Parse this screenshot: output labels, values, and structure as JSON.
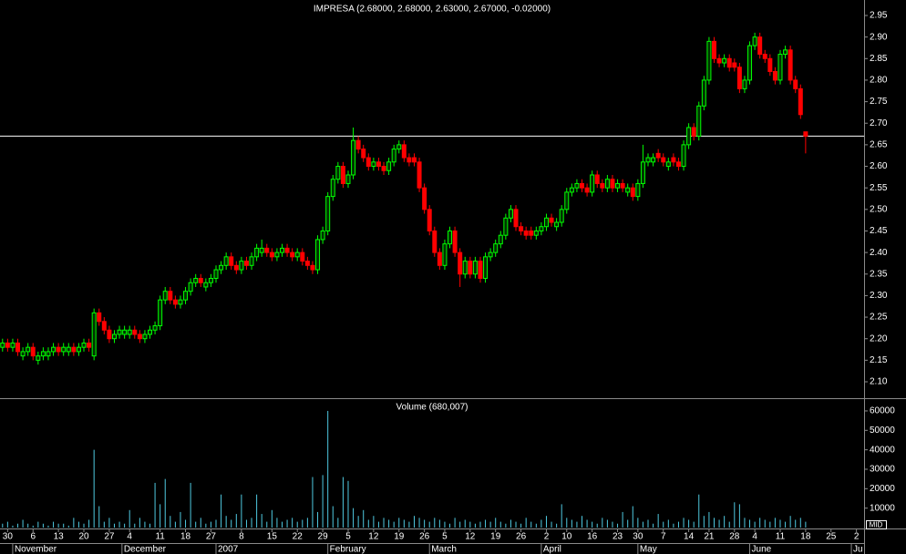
{
  "chart_data": {
    "type": "candlestick",
    "title": "IMPRESA (2.68000, 2.68000, 2.63000, 2.67000, -0.02000)",
    "up_color": "#00ff00",
    "down_color": "#ff0000",
    "open": [
      2.18,
      2.19,
      2.18,
      2.19,
      2.16,
      2.17,
      2.18,
      2.15,
      2.16,
      2.16,
      2.17,
      2.18,
      2.17,
      2.17,
      2.18,
      2.17,
      2.18,
      2.19,
      2.16,
      2.26,
      2.24,
      2.22,
      2.2,
      2.21,
      2.21,
      2.21,
      2.22,
      2.21,
      2.2,
      2.21,
      2.22,
      2.23,
      2.29,
      2.31,
      2.29,
      2.28,
      2.29,
      2.31,
      2.33,
      2.34,
      2.32,
      2.33,
      2.34,
      2.36,
      2.37,
      2.39,
      2.37,
      2.36,
      2.38,
      2.37,
      2.39,
      2.4,
      2.41,
      2.4,
      2.39,
      2.4,
      2.41,
      2.4,
      2.39,
      2.4,
      2.38,
      2.37,
      2.36,
      2.43,
      2.45,
      2.53,
      2.57,
      2.6,
      2.56,
      2.58,
      2.66,
      2.64,
      2.62,
      2.6,
      2.61,
      2.6,
      2.59,
      2.61,
      2.64,
      2.65,
      2.62,
      2.62,
      2.61,
      2.55,
      2.5,
      2.45,
      2.4,
      2.37,
      2.42,
      2.45,
      2.4,
      2.35,
      2.38,
      2.35,
      2.38,
      2.34,
      2.39,
      2.4,
      2.42,
      2.44,
      2.48,
      2.5,
      2.46,
      2.45,
      2.45,
      2.44,
      2.45,
      2.46,
      2.48,
      2.46,
      2.47,
      2.5,
      2.54,
      2.55,
      2.56,
      2.55,
      2.54,
      2.58,
      2.56,
      2.55,
      2.57,
      2.55,
      2.56,
      2.54,
      2.55,
      2.53,
      2.56,
      2.61,
      2.61,
      2.63,
      2.62,
      2.6,
      2.62,
      2.61,
      2.6,
      2.65,
      2.69,
      2.67,
      2.74,
      2.8,
      2.89,
      2.85,
      2.84,
      2.85,
      2.84,
      2.83,
      2.78,
      2.8,
      2.88,
      2.9,
      2.86,
      2.85,
      2.82,
      2.8,
      2.86,
      2.87,
      2.8,
      2.78,
      2.68
    ],
    "high": [
      2.2,
      2.2,
      2.2,
      2.2,
      2.18,
      2.19,
      2.19,
      2.17,
      2.18,
      2.18,
      2.19,
      2.19,
      2.19,
      2.19,
      2.19,
      2.19,
      2.2,
      2.2,
      2.27,
      2.27,
      2.25,
      2.23,
      2.22,
      2.23,
      2.23,
      2.23,
      2.23,
      2.22,
      2.22,
      2.23,
      2.24,
      2.3,
      2.32,
      2.32,
      2.3,
      2.3,
      2.32,
      2.34,
      2.35,
      2.35,
      2.34,
      2.35,
      2.37,
      2.38,
      2.4,
      2.4,
      2.38,
      2.39,
      2.39,
      2.4,
      2.42,
      2.43,
      2.42,
      2.41,
      2.41,
      2.42,
      2.42,
      2.41,
      2.41,
      2.41,
      2.39,
      2.38,
      2.44,
      2.46,
      2.54,
      2.58,
      2.61,
      2.61,
      2.59,
      2.69,
      2.67,
      2.65,
      2.63,
      2.62,
      2.62,
      2.61,
      2.62,
      2.65,
      2.66,
      2.66,
      2.63,
      2.63,
      2.62,
      2.56,
      2.51,
      2.46,
      2.41,
      2.43,
      2.46,
      2.46,
      2.41,
      2.39,
      2.39,
      2.39,
      2.39,
      2.4,
      2.41,
      2.43,
      2.45,
      2.49,
      2.51,
      2.51,
      2.47,
      2.46,
      2.46,
      2.46,
      2.47,
      2.49,
      2.49,
      2.48,
      2.51,
      2.55,
      2.56,
      2.57,
      2.57,
      2.56,
      2.59,
      2.59,
      2.57,
      2.58,
      2.58,
      2.57,
      2.57,
      2.56,
      2.56,
      2.57,
      2.65,
      2.63,
      2.63,
      2.64,
      2.63,
      2.62,
      2.63,
      2.62,
      2.66,
      2.7,
      2.7,
      2.75,
      2.81,
      2.9,
      2.9,
      2.86,
      2.86,
      2.86,
      2.85,
      2.84,
      2.81,
      2.89,
      2.91,
      2.91,
      2.87,
      2.86,
      2.83,
      2.87,
      2.88,
      2.88,
      2.81,
      2.79,
      2.68
    ],
    "low": [
      2.17,
      2.17,
      2.17,
      2.16,
      2.15,
      2.16,
      2.15,
      2.14,
      2.15,
      2.15,
      2.16,
      2.16,
      2.16,
      2.16,
      2.16,
      2.16,
      2.17,
      2.17,
      2.15,
      2.23,
      2.21,
      2.19,
      2.19,
      2.2,
      2.2,
      2.2,
      2.2,
      2.19,
      2.19,
      2.2,
      2.21,
      2.22,
      2.28,
      2.28,
      2.27,
      2.27,
      2.28,
      2.3,
      2.32,
      2.32,
      2.31,
      2.32,
      2.33,
      2.35,
      2.36,
      2.36,
      2.35,
      2.35,
      2.36,
      2.36,
      2.38,
      2.39,
      2.39,
      2.38,
      2.38,
      2.39,
      2.39,
      2.38,
      2.38,
      2.37,
      2.36,
      2.35,
      2.35,
      2.42,
      2.44,
      2.52,
      2.56,
      2.55,
      2.55,
      2.57,
      2.63,
      2.61,
      2.59,
      2.59,
      2.59,
      2.58,
      2.58,
      2.6,
      2.63,
      2.61,
      2.6,
      2.6,
      2.54,
      2.49,
      2.44,
      2.39,
      2.36,
      2.36,
      2.41,
      2.39,
      2.32,
      2.34,
      2.34,
      2.34,
      2.33,
      2.33,
      2.38,
      2.39,
      2.41,
      2.43,
      2.47,
      2.45,
      2.44,
      2.43,
      2.43,
      2.43,
      2.44,
      2.45,
      2.46,
      2.45,
      2.46,
      2.49,
      2.53,
      2.54,
      2.54,
      2.53,
      2.53,
      2.55,
      2.54,
      2.54,
      2.54,
      2.54,
      2.54,
      2.53,
      2.52,
      2.52,
      2.55,
      2.6,
      2.6,
      2.61,
      2.6,
      2.59,
      2.6,
      2.59,
      2.59,
      2.64,
      2.66,
      2.66,
      2.73,
      2.79,
      2.84,
      2.83,
      2.83,
      2.82,
      2.82,
      2.77,
      2.77,
      2.79,
      2.87,
      2.85,
      2.84,
      2.81,
      2.79,
      2.79,
      2.85,
      2.79,
      2.77,
      2.71,
      2.63
    ],
    "close": [
      2.19,
      2.18,
      2.19,
      2.17,
      2.17,
      2.18,
      2.16,
      2.16,
      2.17,
      2.17,
      2.18,
      2.17,
      2.18,
      2.18,
      2.17,
      2.18,
      2.19,
      2.18,
      2.26,
      2.24,
      2.22,
      2.2,
      2.21,
      2.22,
      2.22,
      2.22,
      2.21,
      2.2,
      2.21,
      2.22,
      2.23,
      2.29,
      2.31,
      2.29,
      2.28,
      2.29,
      2.31,
      2.33,
      2.34,
      2.33,
      2.33,
      2.34,
      2.36,
      2.37,
      2.39,
      2.37,
      2.36,
      2.38,
      2.37,
      2.39,
      2.41,
      2.41,
      2.4,
      2.39,
      2.4,
      2.41,
      2.4,
      2.39,
      2.4,
      2.38,
      2.37,
      2.36,
      2.43,
      2.45,
      2.53,
      2.57,
      2.6,
      2.56,
      2.58,
      2.66,
      2.64,
      2.62,
      2.6,
      2.61,
      2.6,
      2.59,
      2.61,
      2.64,
      2.65,
      2.62,
      2.61,
      2.61,
      2.55,
      2.5,
      2.45,
      2.4,
      2.37,
      2.42,
      2.45,
      2.4,
      2.35,
      2.38,
      2.35,
      2.38,
      2.34,
      2.39,
      2.4,
      2.42,
      2.44,
      2.48,
      2.5,
      2.46,
      2.45,
      2.44,
      2.44,
      2.45,
      2.46,
      2.48,
      2.47,
      2.47,
      2.5,
      2.54,
      2.55,
      2.56,
      2.55,
      2.54,
      2.58,
      2.56,
      2.55,
      2.57,
      2.55,
      2.56,
      2.55,
      2.55,
      2.53,
      2.56,
      2.61,
      2.62,
      2.62,
      2.62,
      2.61,
      2.61,
      2.61,
      2.6,
      2.65,
      2.69,
      2.67,
      2.74,
      2.8,
      2.89,
      2.85,
      2.84,
      2.85,
      2.83,
      2.83,
      2.78,
      2.8,
      2.88,
      2.9,
      2.86,
      2.85,
      2.82,
      2.8,
      2.86,
      2.87,
      2.8,
      2.78,
      2.72,
      2.67
    ],
    "xlim": [
      -0.5,
      169.5
    ],
    "xticks": [
      {
        "value": 1,
        "label": "30"
      },
      {
        "value": 6,
        "label": "6"
      },
      {
        "value": 11,
        "label": "13"
      },
      {
        "value": 16,
        "label": "20"
      },
      {
        "value": 21,
        "label": "27"
      },
      {
        "value": 25,
        "label": "4"
      },
      {
        "value": 31,
        "label": "11"
      },
      {
        "value": 36,
        "label": "18"
      },
      {
        "value": 41,
        "label": "27"
      },
      {
        "value": 47,
        "label": "8"
      },
      {
        "value": 53,
        "label": "15"
      },
      {
        "value": 58,
        "label": "22"
      },
      {
        "value": 63,
        "label": "29"
      },
      {
        "value": 68,
        "label": "5"
      },
      {
        "value": 73,
        "label": "12"
      },
      {
        "value": 78,
        "label": "19"
      },
      {
        "value": 83,
        "label": "26"
      },
      {
        "value": 87,
        "label": "5"
      },
      {
        "value": 92,
        "label": "12"
      },
      {
        "value": 97,
        "label": "19"
      },
      {
        "value": 102,
        "label": "26"
      },
      {
        "value": 107,
        "label": "2"
      },
      {
        "value": 111,
        "label": "10"
      },
      {
        "value": 116,
        "label": "16"
      },
      {
        "value": 121,
        "label": "23"
      },
      {
        "value": 125,
        "label": "30"
      },
      {
        "value": 130,
        "label": "7"
      },
      {
        "value": 135,
        "label": "14"
      },
      {
        "value": 139,
        "label": "21"
      },
      {
        "value": 144,
        "label": "28"
      },
      {
        "value": 148,
        "label": "4"
      },
      {
        "value": 153,
        "label": "11"
      },
      {
        "value": 158,
        "label": "18"
      },
      {
        "value": 163,
        "label": "25"
      },
      {
        "value": 168,
        "label": "2"
      }
    ],
    "month_ticks": [
      {
        "value": 2,
        "label": "November"
      },
      {
        "value": 23.5,
        "label": "December"
      },
      {
        "value": 42,
        "label": "2007"
      },
      {
        "value": 64,
        "label": "February"
      },
      {
        "value": 84,
        "label": "March"
      },
      {
        "value": 106,
        "label": "April"
      },
      {
        "value": 125,
        "label": "May"
      },
      {
        "value": 147,
        "label": "June"
      },
      {
        "value": 167,
        "label": "Ju"
      }
    ],
    "ylim": [
      2.07,
      2.98
    ],
    "yticks": [
      {
        "value": 2.1,
        "label": "2.10"
      },
      2.15,
      {
        "value": 2.2,
        "label": "2.20"
      },
      2.25,
      {
        "value": 2.3,
        "label": "2.30"
      },
      2.35,
      {
        "value": 2.4,
        "label": "2.40"
      },
      2.45,
      {
        "value": 2.5,
        "label": "2.50"
      },
      2.55,
      {
        "value": 2.6,
        "label": "2.60"
      },
      2.65,
      {
        "value": 2.7,
        "label": "2.70"
      },
      2.75,
      {
        "value": 2.8,
        "label": "2.80"
      },
      2.85,
      {
        "value": 2.9,
        "label": "2.90"
      },
      2.95
    ],
    "reference_line": 2.67,
    "period_label": "MID",
    "volume": {
      "title": "Volume (680,007)",
      "color": "#4fc9e0",
      "ylim": [
        0,
        62000
      ],
      "yticks": [
        10000,
        20000,
        30000,
        40000,
        50000,
        60000
      ],
      "values": [
        2000,
        3000,
        1000,
        2000,
        4000,
        2000,
        1000,
        3000,
        2000,
        1000,
        3000,
        2000,
        2000,
        1000,
        5000,
        3000,
        2000,
        4000,
        40000,
        11000,
        3000,
        5000,
        2000,
        3000,
        2000,
        9000,
        2000,
        5000,
        3000,
        2000,
        23000,
        12000,
        25000,
        6000,
        3000,
        8000,
        4000,
        23000,
        3000,
        5000,
        2000,
        3000,
        4000,
        17000,
        6000,
        4000,
        7000,
        17000,
        4000,
        5000,
        17000,
        7000,
        3000,
        9000,
        5000,
        3000,
        4000,
        5000,
        3000,
        4000,
        5000,
        26000,
        8000,
        27000,
        60000,
        11000,
        5000,
        26000,
        24000,
        10000,
        6000,
        9000,
        4000,
        6000,
        3000,
        5000,
        4000,
        3000,
        5000,
        4000,
        3000,
        6000,
        5000,
        4000,
        3000,
        5000,
        4000,
        3000,
        2000,
        5000,
        3000,
        4000,
        3000,
        2000,
        3000,
        4000,
        3000,
        5000,
        3000,
        2000,
        4000,
        3000,
        2000,
        5000,
        3000,
        2000,
        4000,
        6000,
        3000,
        2000,
        12000,
        5000,
        4000,
        3000,
        6000,
        4000,
        3000,
        2000,
        5000,
        4000,
        3000,
        2000,
        8000,
        4000,
        11000,
        5000,
        3000,
        4000,
        2000,
        7000,
        3000,
        4000,
        2000,
        3000,
        5000,
        4000,
        3000,
        17000,
        6000,
        8000,
        5000,
        4000,
        6000,
        3000,
        13000,
        12000,
        5000,
        4000,
        3000,
        5000,
        4000,
        3000,
        5000,
        4000,
        3000,
        6000,
        4000,
        5000,
        3000
      ]
    }
  }
}
